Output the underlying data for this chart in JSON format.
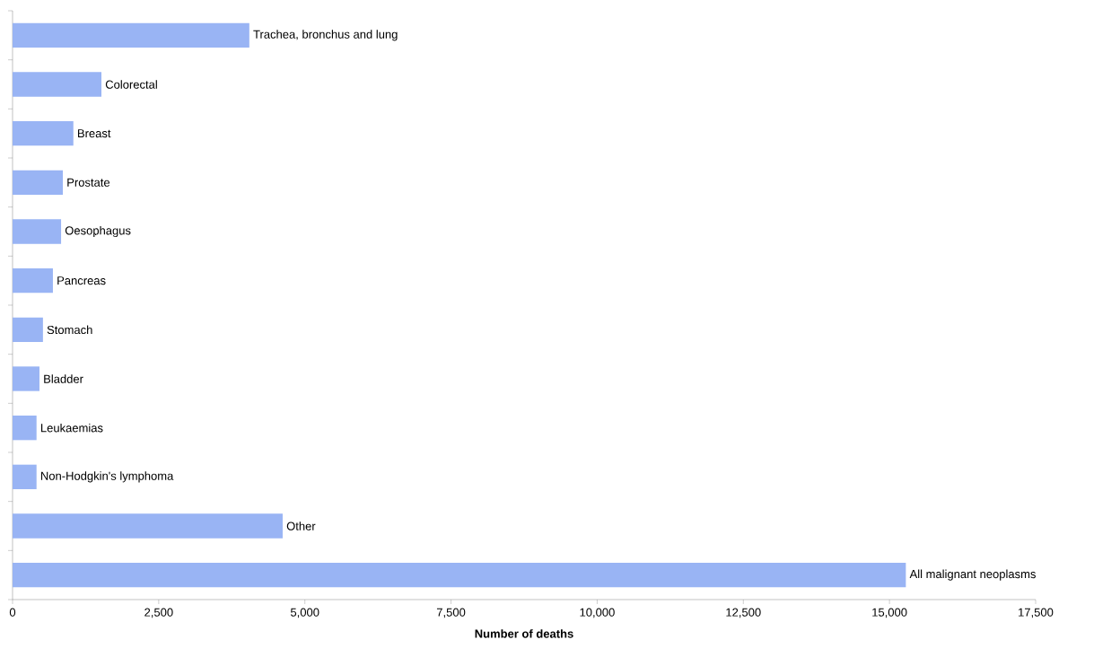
{
  "chart_data": {
    "type": "bar",
    "orientation": "horizontal",
    "xlabel": "Number of deaths",
    "categories": [
      "Trachea, bronchus and lung",
      "Colorectal",
      "Breast",
      "Prostate",
      "Oesophagus",
      "Pancreas",
      "Stomach",
      "Bladder",
      "Leukaemias",
      "Non-Hodgkin's lymphoma",
      "Other",
      "All malignant neoplasms"
    ],
    "values": [
      4050,
      1520,
      1040,
      860,
      830,
      690,
      520,
      460,
      410,
      410,
      4620,
      15280
    ],
    "color": "#99b4f4",
    "xlim": [
      0,
      17500
    ],
    "xticks": [
      0,
      {
        "value": 2500,
        "label": "2,500"
      },
      {
        "value": 5000,
        "label": "5,000"
      },
      {
        "value": 7500,
        "label": "7,500"
      },
      {
        "value": 10000,
        "label": "10,000"
      },
      {
        "value": 12500,
        "label": "12,500"
      },
      {
        "value": 15000,
        "label": "15,000"
      },
      {
        "value": 17500,
        "label": "17,500"
      }
    ]
  }
}
